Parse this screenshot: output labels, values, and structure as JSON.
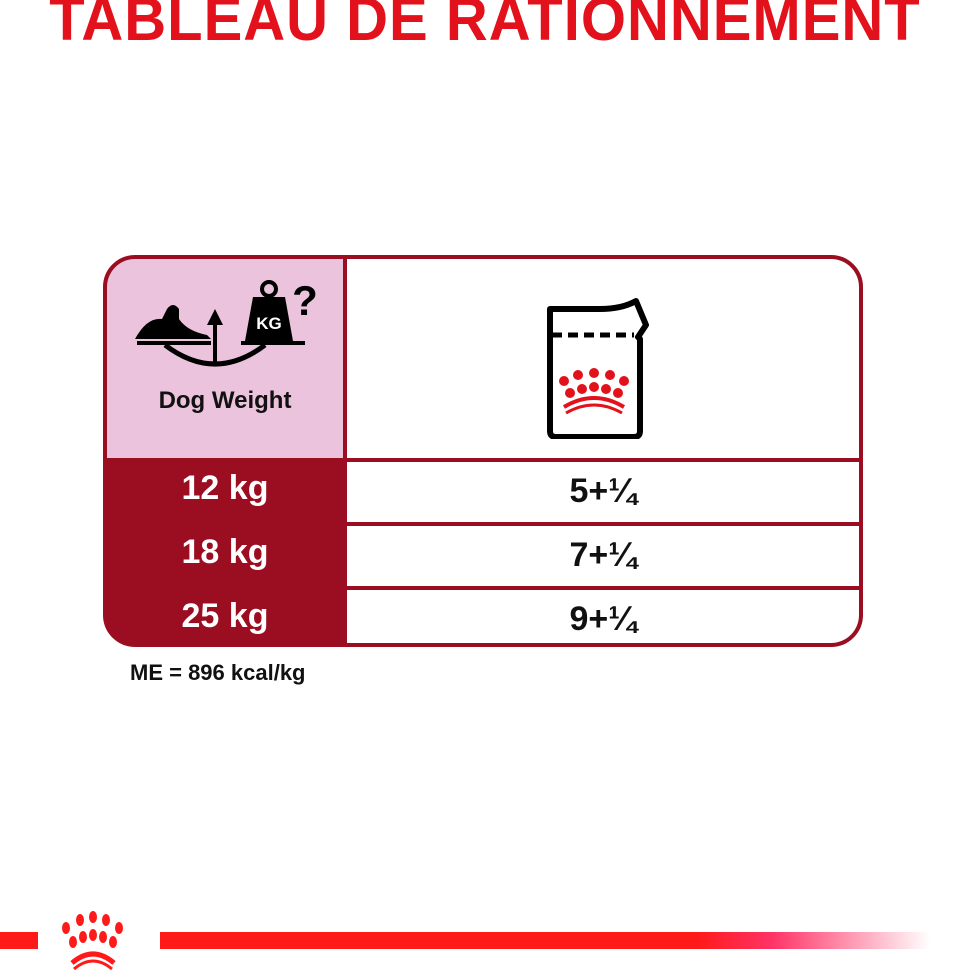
{
  "title": "TABLEAU DE RATIONNEMENT",
  "table": {
    "header": {
      "weight_label": "Dog Weight",
      "weight_icon": "dog-scale-kg-icon",
      "weight_icon_text": "KG",
      "food_icon": "pouch-crown-icon"
    },
    "rows": [
      {
        "weight": "12 kg",
        "pouches": "5+¼"
      },
      {
        "weight": "18 kg",
        "pouches": "7+¼"
      },
      {
        "weight": "25 kg",
        "pouches": "9+¼"
      }
    ]
  },
  "energy_note": "ME = 896 kcal/kg",
  "colors": {
    "brand_red": "#e3111b",
    "table_dark_red": "#9b0d20",
    "header_pink": "#ecc3dc"
  }
}
